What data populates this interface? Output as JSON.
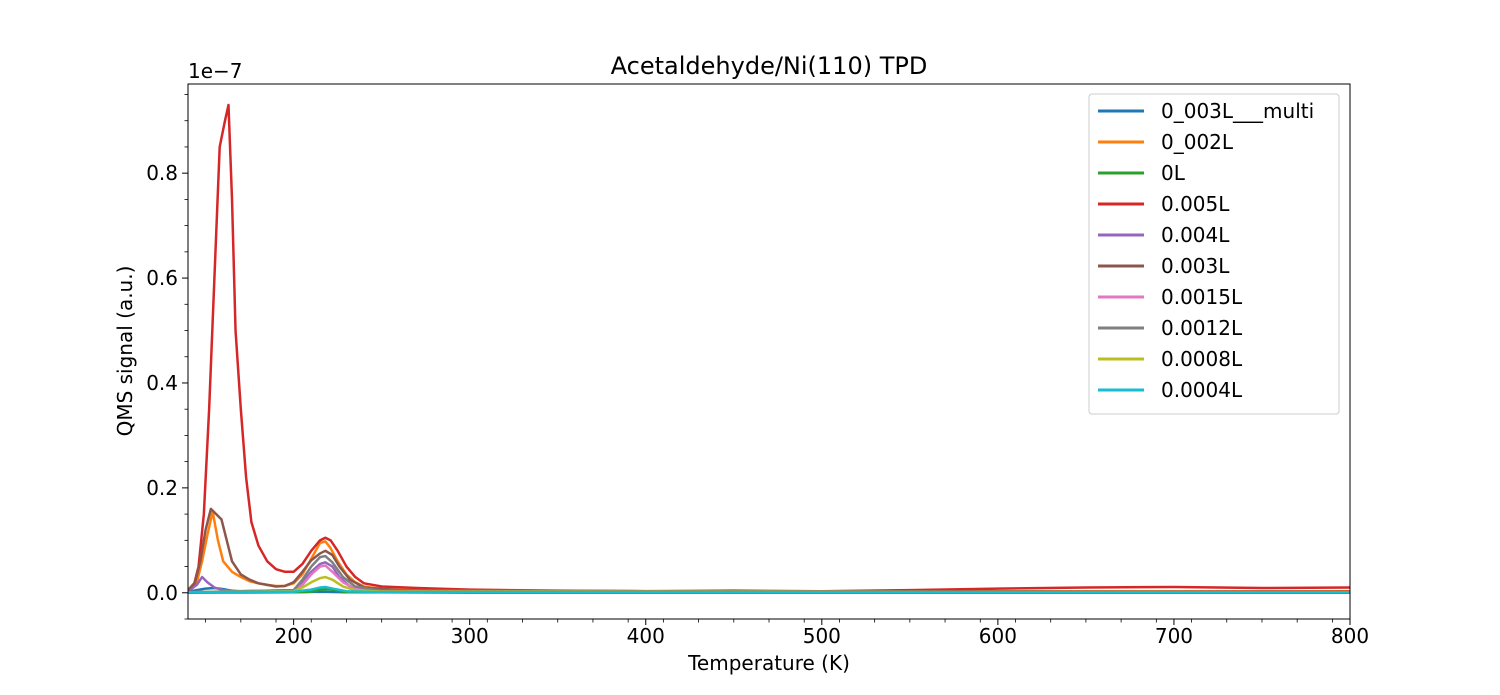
{
  "chart_data": {
    "type": "line",
    "title": "Acetaldehyde/Ni(110) TPD",
    "xlabel": "Temperature (K)",
    "ylabel": "QMS signal (a.u.)",
    "y_multiplier": "1e−7",
    "xlim": [
      140,
      800
    ],
    "ylim": [
      -0.05,
      0.97
    ],
    "x_ticks": [
      200,
      300,
      400,
      500,
      600,
      700,
      800
    ],
    "y_ticks": [
      0.0,
      0.2,
      0.4,
      0.6,
      0.8
    ],
    "x_tick_labels": [
      "200",
      "300",
      "400",
      "500",
      "600",
      "700",
      "800"
    ],
    "y_tick_labels": [
      "0.0",
      "0.2",
      "0.4",
      "0.6",
      "0.8"
    ],
    "grid": false,
    "legend_position": "top-right",
    "series": [
      {
        "name": "0_003L___multi",
        "color": "#1f77b4",
        "points": [
          [
            140,
            0.002
          ],
          [
            145,
            0.005
          ],
          [
            150,
            0.008
          ],
          [
            155,
            0.009
          ],
          [
            160,
            0.007
          ],
          [
            165,
            0.004
          ],
          [
            170,
            0.002
          ],
          [
            180,
            0.001
          ],
          [
            200,
            0.001
          ],
          [
            215,
            0.002
          ],
          [
            230,
            0.001
          ],
          [
            800,
            0.001
          ]
        ]
      },
      {
        "name": "0_002L",
        "color": "#ff7f0e",
        "points": [
          [
            140,
            0.005
          ],
          [
            145,
            0.02
          ],
          [
            148,
            0.06
          ],
          [
            151,
            0.11
          ],
          [
            154,
            0.155
          ],
          [
            157,
            0.1
          ],
          [
            160,
            0.06
          ],
          [
            165,
            0.04
          ],
          [
            170,
            0.03
          ],
          [
            175,
            0.022
          ],
          [
            180,
            0.018
          ],
          [
            185,
            0.015
          ],
          [
            190,
            0.013
          ],
          [
            195,
            0.013
          ],
          [
            200,
            0.018
          ],
          [
            205,
            0.035
          ],
          [
            210,
            0.065
          ],
          [
            215,
            0.095
          ],
          [
            218,
            0.098
          ],
          [
            221,
            0.085
          ],
          [
            225,
            0.06
          ],
          [
            230,
            0.035
          ],
          [
            235,
            0.02
          ],
          [
            240,
            0.012
          ],
          [
            250,
            0.007
          ],
          [
            270,
            0.005
          ],
          [
            300,
            0.004
          ],
          [
            400,
            0.003
          ],
          [
            500,
            0.003
          ],
          [
            600,
            0.003
          ],
          [
            700,
            0.003
          ],
          [
            800,
            0.003
          ]
        ]
      },
      {
        "name": "0L",
        "color": "#2ca02c",
        "points": [
          [
            140,
            0.0
          ],
          [
            200,
            0.001
          ],
          [
            210,
            0.002
          ],
          [
            215,
            0.006
          ],
          [
            220,
            0.007
          ],
          [
            225,
            0.004
          ],
          [
            230,
            0.001
          ],
          [
            300,
            0.0
          ],
          [
            500,
            0.0
          ],
          [
            800,
            0.0
          ]
        ]
      },
      {
        "name": "0.005L",
        "color": "#d62728",
        "points": [
          [
            140,
            0.005
          ],
          [
            143,
            0.01
          ],
          [
            146,
            0.05
          ],
          [
            149,
            0.15
          ],
          [
            152,
            0.35
          ],
          [
            155,
            0.6
          ],
          [
            158,
            0.85
          ],
          [
            161,
            0.9
          ],
          [
            163,
            0.93
          ],
          [
            165,
            0.75
          ],
          [
            167,
            0.5
          ],
          [
            170,
            0.35
          ],
          [
            173,
            0.22
          ],
          [
            176,
            0.135
          ],
          [
            180,
            0.09
          ],
          [
            185,
            0.06
          ],
          [
            190,
            0.045
          ],
          [
            195,
            0.04
          ],
          [
            200,
            0.04
          ],
          [
            205,
            0.055
          ],
          [
            210,
            0.08
          ],
          [
            215,
            0.1
          ],
          [
            218,
            0.105
          ],
          [
            221,
            0.1
          ],
          [
            225,
            0.08
          ],
          [
            230,
            0.05
          ],
          [
            235,
            0.03
          ],
          [
            240,
            0.018
          ],
          [
            250,
            0.012
          ],
          [
            270,
            0.009
          ],
          [
            300,
            0.006
          ],
          [
            350,
            0.004
          ],
          [
            400,
            0.003
          ],
          [
            450,
            0.004
          ],
          [
            500,
            0.003
          ],
          [
            550,
            0.005
          ],
          [
            600,
            0.008
          ],
          [
            650,
            0.01
          ],
          [
            700,
            0.011
          ],
          [
            750,
            0.009
          ],
          [
            800,
            0.01
          ]
        ]
      },
      {
        "name": "0.004L",
        "color": "#9467bd",
        "points": [
          [
            140,
            0.003
          ],
          [
            145,
            0.015
          ],
          [
            148,
            0.03
          ],
          [
            151,
            0.02
          ],
          [
            155,
            0.01
          ],
          [
            160,
            0.005
          ],
          [
            170,
            0.003
          ],
          [
            200,
            0.005
          ],
          [
            205,
            0.02
          ],
          [
            210,
            0.04
          ],
          [
            215,
            0.055
          ],
          [
            218,
            0.058
          ],
          [
            222,
            0.05
          ],
          [
            226,
            0.03
          ],
          [
            232,
            0.012
          ],
          [
            240,
            0.005
          ],
          [
            260,
            0.002
          ],
          [
            800,
            0.002
          ]
        ]
      },
      {
        "name": "0.003L",
        "color": "#8c564b",
        "points": [
          [
            140,
            0.005
          ],
          [
            144,
            0.02
          ],
          [
            147,
            0.06
          ],
          [
            150,
            0.12
          ],
          [
            153,
            0.16
          ],
          [
            156,
            0.15
          ],
          [
            159,
            0.14
          ],
          [
            162,
            0.1
          ],
          [
            165,
            0.06
          ],
          [
            170,
            0.035
          ],
          [
            175,
            0.025
          ],
          [
            180,
            0.018
          ],
          [
            185,
            0.015
          ],
          [
            190,
            0.012
          ],
          [
            195,
            0.013
          ],
          [
            200,
            0.02
          ],
          [
            205,
            0.04
          ],
          [
            210,
            0.062
          ],
          [
            215,
            0.075
          ],
          [
            218,
            0.08
          ],
          [
            222,
            0.072
          ],
          [
            226,
            0.05
          ],
          [
            232,
            0.025
          ],
          [
            240,
            0.01
          ],
          [
            260,
            0.005
          ],
          [
            300,
            0.003
          ],
          [
            800,
            0.002
          ]
        ]
      },
      {
        "name": "0.0015L",
        "color": "#e377c2",
        "points": [
          [
            140,
            0.001
          ],
          [
            200,
            0.003
          ],
          [
            205,
            0.015
          ],
          [
            210,
            0.035
          ],
          [
            215,
            0.05
          ],
          [
            218,
            0.052
          ],
          [
            222,
            0.04
          ],
          [
            228,
            0.02
          ],
          [
            235,
            0.008
          ],
          [
            250,
            0.003
          ],
          [
            800,
            0.001
          ]
        ]
      },
      {
        "name": "0.0012L",
        "color": "#7f7f7f",
        "points": [
          [
            140,
            0.001
          ],
          [
            200,
            0.005
          ],
          [
            205,
            0.025
          ],
          [
            210,
            0.05
          ],
          [
            215,
            0.068
          ],
          [
            218,
            0.07
          ],
          [
            222,
            0.058
          ],
          [
            228,
            0.03
          ],
          [
            235,
            0.012
          ],
          [
            250,
            0.004
          ],
          [
            800,
            0.001
          ]
        ]
      },
      {
        "name": "0.0008L",
        "color": "#bcbd22",
        "points": [
          [
            140,
            0.001
          ],
          [
            200,
            0.003
          ],
          [
            205,
            0.01
          ],
          [
            210,
            0.02
          ],
          [
            215,
            0.028
          ],
          [
            218,
            0.03
          ],
          [
            222,
            0.025
          ],
          [
            228,
            0.012
          ],
          [
            235,
            0.005
          ],
          [
            250,
            0.002
          ],
          [
            800,
            0.001
          ]
        ]
      },
      {
        "name": "0.0004L",
        "color": "#17becf",
        "points": [
          [
            140,
            0.001
          ],
          [
            200,
            0.002
          ],
          [
            210,
            0.006
          ],
          [
            215,
            0.01
          ],
          [
            218,
            0.011
          ],
          [
            222,
            0.008
          ],
          [
            230,
            0.003
          ],
          [
            250,
            0.001
          ],
          [
            800,
            0.001
          ]
        ]
      }
    ]
  }
}
